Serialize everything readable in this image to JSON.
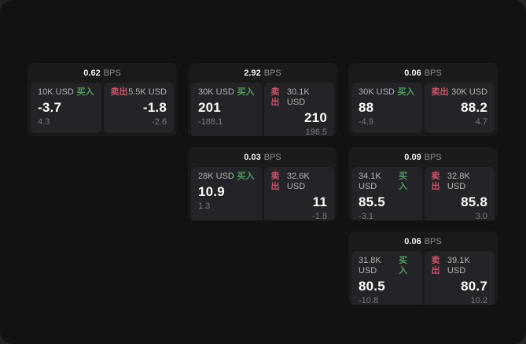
{
  "unit": "BPS",
  "labels": {
    "buy": "买入",
    "sell": "卖出"
  },
  "colors": {
    "buy_green": "#4a9e5c",
    "sell_red": "#cf5266",
    "frame_bg": "#121214",
    "card_bg": "#1a1a1c",
    "panel_bg": "#242428"
  },
  "cards": [
    {
      "bps": "0.62",
      "buy": {
        "amount": "10K USD",
        "value": "-3.7",
        "sub": "4.3"
      },
      "sell": {
        "amount": "5.5K USD",
        "value": "-1.8",
        "sub": "-2.6"
      }
    },
    {
      "bps": "2.92",
      "buy": {
        "amount": "30K USD",
        "value": "201",
        "sub": "-188.1"
      },
      "sell": {
        "amount": "30.1K USD",
        "value": "210",
        "sub": "196.5"
      }
    },
    {
      "bps": "0.06",
      "buy": {
        "amount": "30K USD",
        "value": "88",
        "sub": "-4.9"
      },
      "sell": {
        "amount": "30K USD",
        "value": "88.2",
        "sub": "4.7"
      }
    },
    {
      "bps": "0.03",
      "buy": {
        "amount": "28K USD",
        "value": "10.9",
        "sub": "1.3"
      },
      "sell": {
        "amount": "32.6K USD",
        "value": "11",
        "sub": "-1.8"
      }
    },
    {
      "bps": "0.09",
      "buy": {
        "amount": "34.1K USD",
        "value": "85.5",
        "sub": "-3.1"
      },
      "sell": {
        "amount": "32.8K USD",
        "value": "85.8",
        "sub": "3.0"
      }
    },
    {
      "bps": "0.06",
      "buy": {
        "amount": "31.8K USD",
        "value": "80.5",
        "sub": "-10.8"
      },
      "sell": {
        "amount": "39.1K USD",
        "value": "80.7",
        "sub": "10.2"
      }
    }
  ]
}
